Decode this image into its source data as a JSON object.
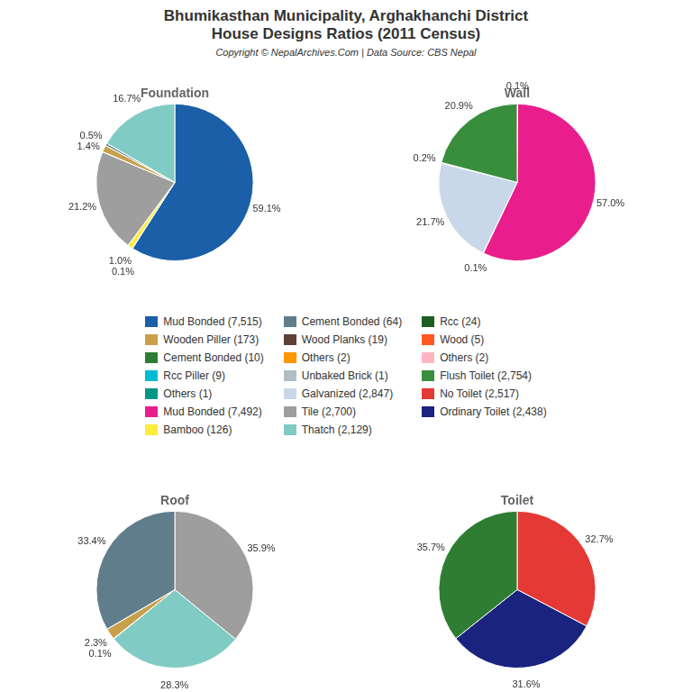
{
  "title": [
    "Bhumikasthan Municipality, Arghakhanchi District",
    "House Designs Ratios (2011 Census)"
  ],
  "subtitle": "Copyright © NepalArchives.Com | Data Source: CBS Nepal",
  "legend_entries": [
    {
      "name": "Mud Bonded (7,515)",
      "color": "#1a5fa8"
    },
    {
      "name": "Wooden Piller (173)",
      "color": "#c8a04a"
    },
    {
      "name": "Cement Bonded (10)",
      "color": "#2e7d32"
    },
    {
      "name": "Rcc Piller (9)",
      "color": "#00bcd4"
    },
    {
      "name": "Others (1)",
      "color": "#009688"
    },
    {
      "name": "Mud Bonded (7,492)",
      "color": "#e91e8c"
    },
    {
      "name": "Bamboo (126)",
      "color": "#ffeb3b"
    },
    {
      "name": "Cement Bonded (64)",
      "color": "#607d8b"
    },
    {
      "name": "Wood Planks (19)",
      "color": "#5d4037"
    },
    {
      "name": "Others (2)",
      "color": "#ff9800"
    },
    {
      "name": "Unbaked Brick (1)",
      "color": "#b0bec5"
    },
    {
      "name": "Galvanized (2,847)",
      "color": "#c8d8e8"
    },
    {
      "name": "Tile (2,700)",
      "color": "#9e9e9e"
    },
    {
      "name": "Thatch (2,129)",
      "color": "#80cbc4"
    },
    {
      "name": "Rcc (24)",
      "color": "#1b5e20"
    },
    {
      "name": "Wood (5)",
      "color": "#ff5722"
    },
    {
      "name": "Others (2)",
      "color": "#ffb6c1"
    },
    {
      "name": "Flush Toilet (2,754)",
      "color": "#388e3c"
    },
    {
      "name": "No Toilet (2,517)",
      "color": "#e53935"
    },
    {
      "name": "Ordinary Toilet (2,438)",
      "color": "#1a237e"
    }
  ],
  "chart_data": [
    {
      "type": "pie",
      "title": "Foundation",
      "values": [
        59.1,
        0.1,
        1.0,
        0.0157,
        21.2,
        0.0393,
        1.4,
        0.0079,
        0.5,
        0.0079,
        16.7
      ],
      "value_labels": [
        "59.1%",
        "0.1%",
        "1.0%",
        null,
        "21.2%",
        null,
        "1.4%",
        null,
        "0.5%",
        null,
        "16.7%"
      ],
      "colors": [
        "#1a5fa8",
        "#00bcd4",
        "#ffeb3b",
        "#ff9800",
        "#9e9e9e",
        "#ff5722",
        "#c8a04a",
        "#009688",
        "#607d8b",
        "#b0bec5",
        "#80cbc4"
      ],
      "data_labels": true
    },
    {
      "type": "pie",
      "title": "Wall",
      "values": [
        0.1,
        57.0,
        0.1,
        21.7,
        0.2,
        20.9
      ],
      "value_labels": [
        "0.1%",
        "57.0%",
        "0.1%",
        "21.7%",
        "0.2%",
        "20.9%"
      ],
      "colors": [
        "#2e7d32",
        "#e91e8c",
        "#5d4037",
        "#c8d8e8",
        "#1b5e20",
        "#388e3c"
      ],
      "data_labels": true
    },
    {
      "type": "pie",
      "title": "Roof",
      "values": [
        35.9,
        28.3,
        0.1,
        2.3,
        0.0133,
        33.4
      ],
      "value_labels": [
        "35.9%",
        "28.3%",
        "0.1%",
        "2.3%",
        null,
        "33.4%"
      ],
      "colors": [
        "#9e9e9e",
        "#80cbc4",
        "#ff5722",
        "#c8a04a",
        "#c8d8e8",
        "#607d8b"
      ],
      "data_labels": true
    },
    {
      "type": "pie",
      "title": "Toilet",
      "values": [
        32.7,
        31.6,
        35.7
      ],
      "value_labels": [
        "32.7%",
        "31.6%",
        "35.7%"
      ],
      "colors": [
        "#e53935",
        "#1a237e",
        "#2e7d32"
      ],
      "data_labels": true
    }
  ]
}
